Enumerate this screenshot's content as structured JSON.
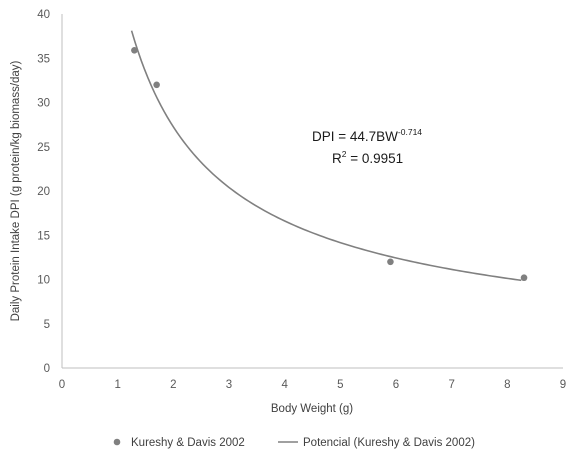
{
  "chart_data": {
    "type": "scatter",
    "title": "",
    "xlabel": "Body Weight (g)",
    "ylabel": "Daily Protein Intake DPI (g protein/kg biomass/day)",
    "xlim": [
      0,
      9
    ],
    "ylim": [
      0,
      40
    ],
    "x_ticks": [
      "0",
      "1",
      "2",
      "3",
      "4",
      "5",
      "6",
      "7",
      "8",
      "9"
    ],
    "y_ticks": [
      "0",
      "5",
      "10",
      "15",
      "20",
      "25",
      "30",
      "35",
      "40"
    ],
    "grid": false,
    "legend_position": "bottom",
    "series": [
      {
        "name": "Kureshy & Davis 2002",
        "kind": "scatter",
        "color": "#808080",
        "points": [
          {
            "x": 1.3,
            "y": 35.9
          },
          {
            "x": 1.7,
            "y": 32.0
          },
          {
            "x": 5.9,
            "y": 12.0
          },
          {
            "x": 8.3,
            "y": 10.2
          }
        ]
      },
      {
        "name": "Potencial (Kureshy & Davis 2002)",
        "kind": "power-trendline",
        "color": "#808080",
        "coefficient": 44.7,
        "exponent": -0.714,
        "x_range": [
          1.25,
          8.25
        ]
      }
    ],
    "annotation": {
      "equation_base": "DPI = 44.7BW",
      "equation_exponent": "-0.714",
      "r2_base": "R",
      "r2_sup": "2",
      "r2_value": " = 0.9951"
    }
  }
}
